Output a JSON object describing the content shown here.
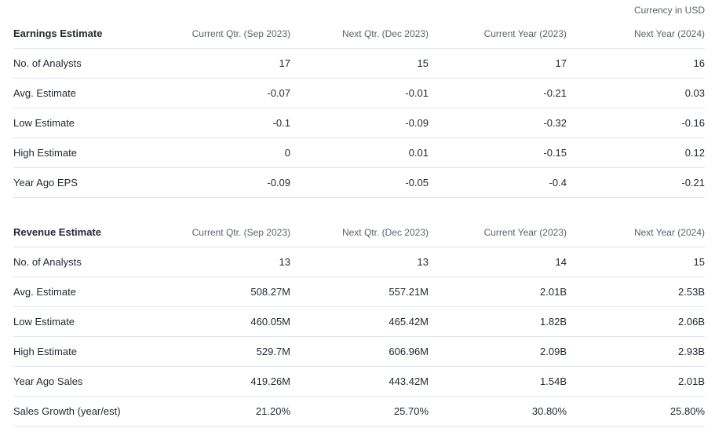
{
  "currency_note": "Currency in USD",
  "earnings": {
    "title": "Earnings Estimate",
    "columns": [
      "Current Qtr. (Sep 2023)",
      "Next Qtr. (Dec 2023)",
      "Current Year (2023)",
      "Next Year (2024)"
    ],
    "rows": [
      {
        "label": "No. of Analysts",
        "values": [
          "17",
          "15",
          "17",
          "16"
        ]
      },
      {
        "label": "Avg. Estimate",
        "values": [
          "-0.07",
          "-0.01",
          "-0.21",
          "0.03"
        ]
      },
      {
        "label": "Low Estimate",
        "values": [
          "-0.1",
          "-0.09",
          "-0.32",
          "-0.16"
        ]
      },
      {
        "label": "High Estimate",
        "values": [
          "0",
          "0.01",
          "-0.15",
          "0.12"
        ]
      },
      {
        "label": "Year Ago EPS",
        "values": [
          "-0.09",
          "-0.05",
          "-0.4",
          "-0.21"
        ]
      }
    ]
  },
  "revenue": {
    "title": "Revenue Estimate",
    "columns": [
      "Current Qtr. (Sep 2023)",
      "Next Qtr. (Dec 2023)",
      "Current Year (2023)",
      "Next Year (2024)"
    ],
    "rows": [
      {
        "label": "No. of Analysts",
        "values": [
          "13",
          "13",
          "14",
          "15"
        ]
      },
      {
        "label": "Avg. Estimate",
        "values": [
          "508.27M",
          "557.21M",
          "2.01B",
          "2.53B"
        ]
      },
      {
        "label": "Low Estimate",
        "values": [
          "460.05M",
          "465.42M",
          "1.82B",
          "2.06B"
        ]
      },
      {
        "label": "High Estimate",
        "values": [
          "529.7M",
          "606.96M",
          "2.09B",
          "2.93B"
        ]
      },
      {
        "label": "Year Ago Sales",
        "values": [
          "419.26M",
          "443.42M",
          "1.54B",
          "2.01B"
        ]
      },
      {
        "label": "Sales Growth (year/est)",
        "values": [
          "21.20%",
          "25.70%",
          "30.80%",
          "25.80%"
        ]
      }
    ]
  }
}
